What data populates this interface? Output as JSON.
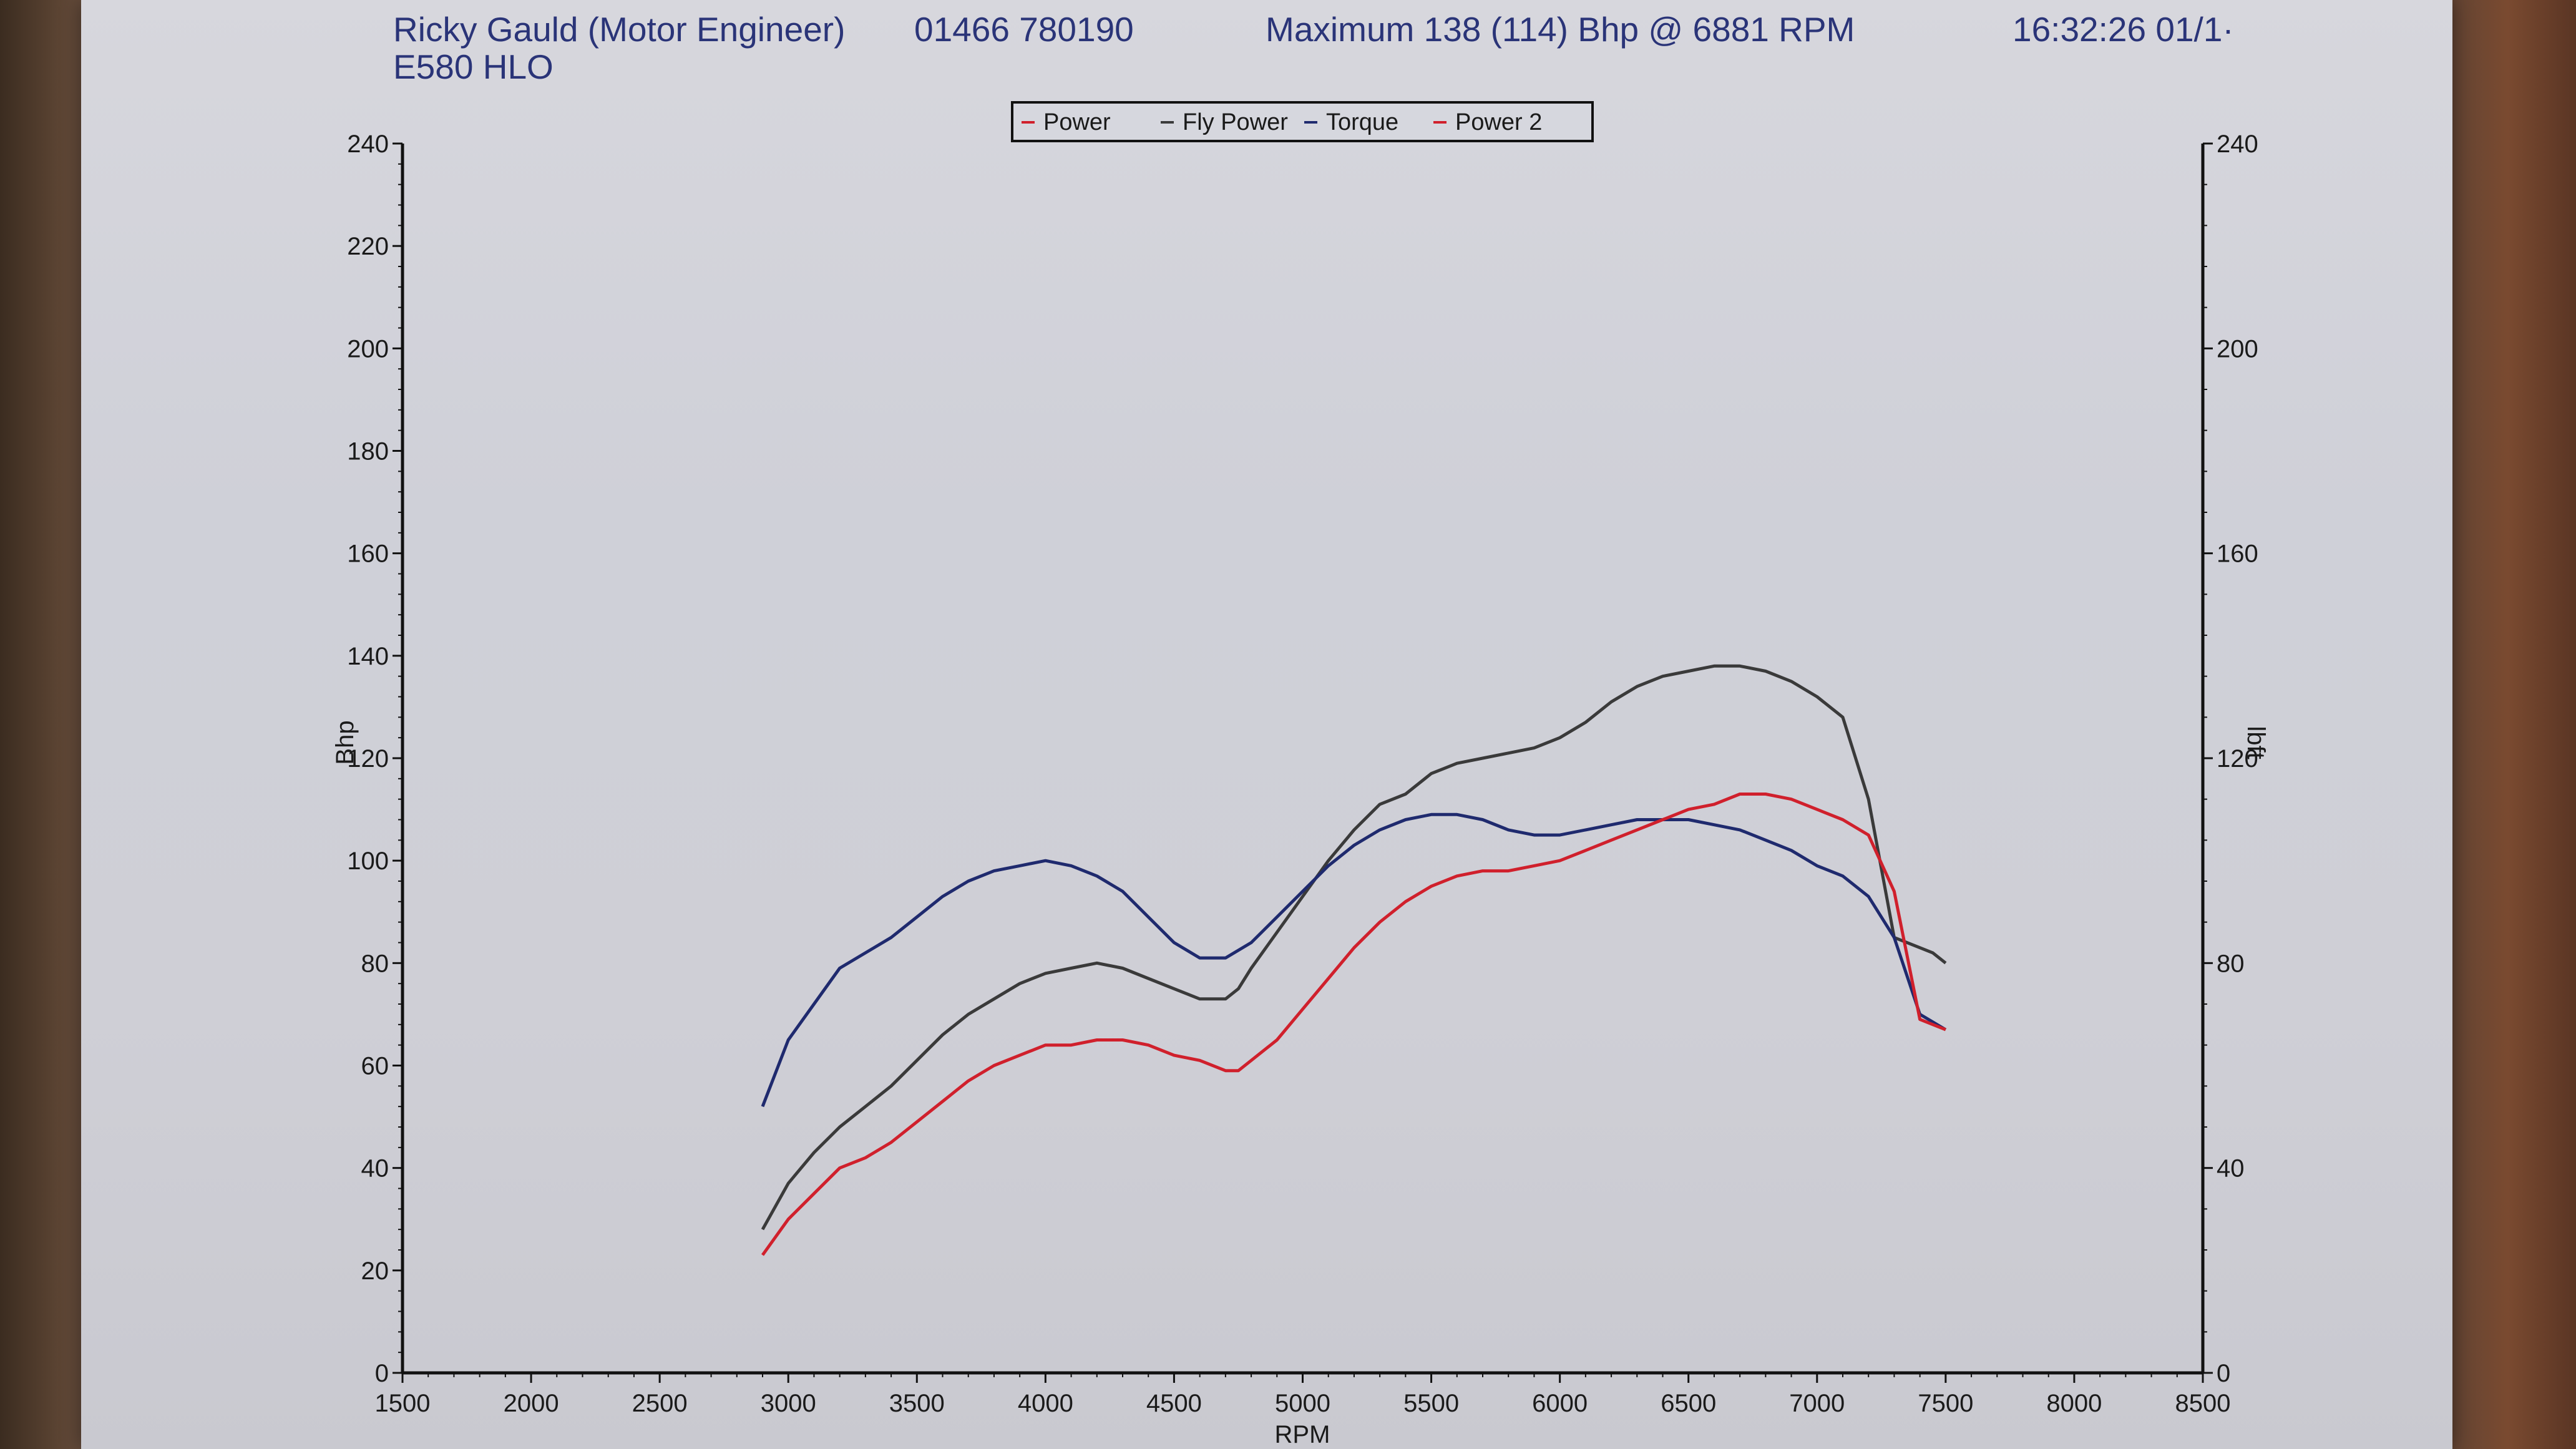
{
  "header": {
    "company": "Ricky Gauld (Motor Engineer)",
    "phone": "01466 780190",
    "maximum": "Maximum 138 (114) Bhp @ 6881 RPM",
    "timestamp": "16:32:26 01/1·",
    "reg": "E580 HLO"
  },
  "colors": {
    "paper": "#cfd0d8",
    "header_text": "#2a3478",
    "power": "#d0202c",
    "fly_power": "#3a3a3a",
    "torque": "#1f2a6e"
  },
  "chart_data": {
    "type": "line",
    "xlabel": "RPM",
    "ylabel": "Bhp",
    "y2label": "lbft",
    "xlim": [
      1500,
      8500
    ],
    "ylim": [
      0,
      240
    ],
    "y2lim": [
      0,
      240
    ],
    "xticks": [
      "1500",
      "2000",
      "2500",
      "3000",
      "3500",
      "4000",
      "4500",
      "5000",
      "5500",
      "6000",
      "6500",
      "7000",
      "7500",
      "8000",
      "8500"
    ],
    "yticks": [
      "0",
      "20",
      "40",
      "60",
      "80",
      "100",
      "120",
      "140",
      "160",
      "180",
      "200",
      "220",
      "240"
    ],
    "y2ticks": [
      "0",
      "40",
      "80",
      "120",
      "160",
      "200",
      "240"
    ],
    "legend": {
      "position": "top-center",
      "entries": [
        "Power",
        "Fly Power",
        "Torque",
        "Power 2"
      ]
    },
    "series": [
      {
        "name": "Fly Power",
        "axis": "left",
        "color": "#3a3a3a",
        "x": [
          2900,
          3000,
          3100,
          3200,
          3300,
          3400,
          3500,
          3600,
          3700,
          3800,
          3900,
          4000,
          4100,
          4200,
          4300,
          4400,
          4500,
          4600,
          4700,
          4750,
          4800,
          4900,
          5000,
          5100,
          5200,
          5300,
          5400,
          5500,
          5550,
          5600,
          5700,
          5800,
          5900,
          6000,
          6100,
          6200,
          6300,
          6400,
          6500,
          6600,
          6700,
          6800,
          6900,
          7000,
          7100,
          7200,
          7300,
          7400,
          7450,
          7500
        ],
        "y": [
          28,
          37,
          43,
          48,
          52,
          56,
          61,
          66,
          70,
          73,
          76,
          78,
          79,
          80,
          79,
          77,
          75,
          73,
          73,
          75,
          79,
          86,
          93,
          100,
          106,
          111,
          113,
          117,
          118,
          119,
          120,
          121,
          122,
          124,
          127,
          131,
          134,
          136,
          137,
          138,
          138,
          137,
          135,
          132,
          128,
          112,
          85,
          83,
          82,
          80
        ]
      },
      {
        "name": "Torque",
        "axis": "right",
        "color": "#1f2a6e",
        "x": [
          2900,
          3000,
          3100,
          3200,
          3300,
          3400,
          3500,
          3600,
          3700,
          3800,
          3900,
          4000,
          4100,
          4200,
          4300,
          4400,
          4500,
          4600,
          4700,
          4800,
          4900,
          5000,
          5100,
          5200,
          5300,
          5400,
          5500,
          5600,
          5700,
          5800,
          5900,
          6000,
          6100,
          6200,
          6300,
          6400,
          6500,
          6600,
          6700,
          6800,
          6900,
          7000,
          7100,
          7200,
          7300,
          7400,
          7500
        ],
        "y": [
          52,
          65,
          72,
          79,
          82,
          85,
          89,
          93,
          96,
          98,
          99,
          100,
          99,
          97,
          94,
          89,
          84,
          81,
          81,
          84,
          89,
          94,
          99,
          103,
          106,
          108,
          109,
          109,
          108,
          106,
          105,
          105,
          106,
          107,
          108,
          108,
          108,
          107,
          106,
          104,
          102,
          99,
          97,
          93,
          85,
          70,
          67
        ]
      },
      {
        "name": "Power",
        "axis": "left",
        "color": "#d0202c",
        "x": [
          2900,
          3000,
          3100,
          3200,
          3300,
          3400,
          3500,
          3600,
          3700,
          3800,
          3900,
          4000,
          4100,
          4200,
          4300,
          4400,
          4500,
          4600,
          4700,
          4750,
          4800,
          4900,
          5000,
          5100,
          5200,
          5300,
          5400,
          5500,
          5600,
          5700,
          5800,
          5900,
          6000,
          6100,
          6200,
          6300,
          6400,
          6500,
          6600,
          6700,
          6800,
          6900,
          7000,
          7100,
          7200,
          7300,
          7400,
          7450,
          7500
        ],
        "y": [
          23,
          30,
          35,
          40,
          42,
          45,
          49,
          53,
          57,
          60,
          62,
          64,
          64,
          65,
          65,
          64,
          62,
          61,
          59,
          59,
          61,
          65,
          71,
          77,
          83,
          88,
          92,
          95,
          97,
          98,
          98,
          99,
          100,
          102,
          104,
          106,
          108,
          110,
          111,
          113,
          113,
          112,
          110,
          108,
          105,
          94,
          69,
          68,
          67
        ]
      }
    ]
  }
}
